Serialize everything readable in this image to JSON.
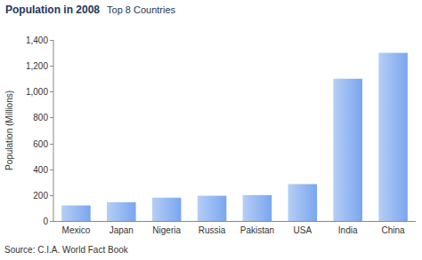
{
  "chart_data": {
    "type": "bar",
    "title": "Population in 2008",
    "subtitle": "Top 8 Countries",
    "y_label": "Population (Millions)",
    "source": "Source: C.I.A. World Fact Book",
    "categories": [
      "Mexico",
      "Japan",
      "Nigeria",
      "Russia",
      "Pakistan",
      "USA",
      "India",
      "China"
    ],
    "values": [
      120,
      145,
      180,
      195,
      200,
      285,
      1100,
      1300
    ],
    "color": "#7aa6ee",
    "ylim": [
      0,
      1400
    ],
    "yticks": [
      0,
      200,
      400,
      600,
      800,
      {
        "value": 1000,
        "label": "1,000"
      },
      {
        "value": 1200,
        "label": "1,200"
      },
      {
        "value": 1400,
        "label": "1,400"
      }
    ],
    "grid": false
  }
}
